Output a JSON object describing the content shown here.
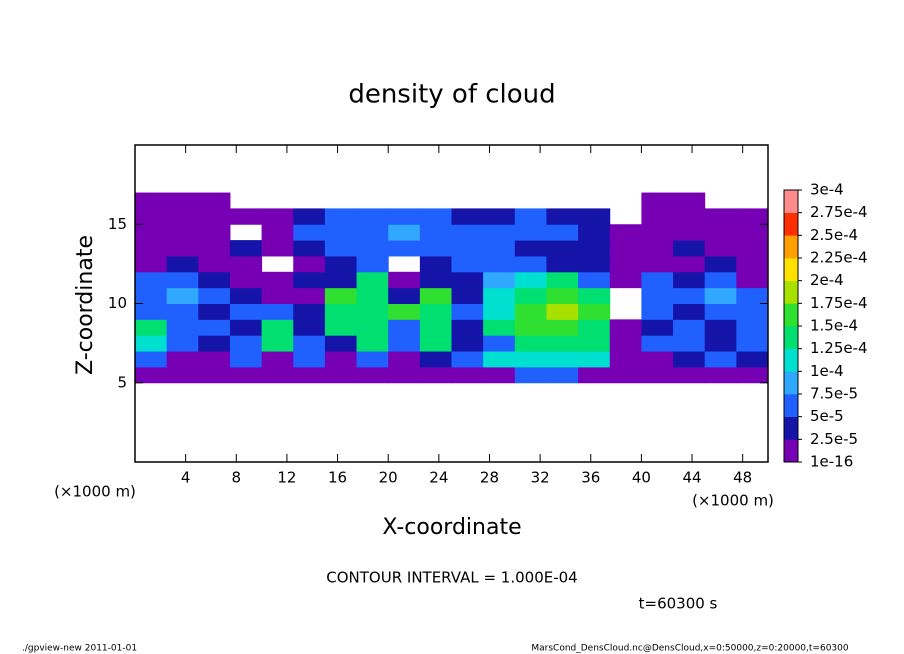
{
  "chart_data": {
    "type": "heatmap",
    "title": "density of cloud",
    "x_label": "X-coordinate",
    "y_label": "Z-coordinate",
    "x_unit_label": "(×1000 m)",
    "annotation": "CONTOUR INTERVAL = 1.000E-04",
    "time_label": "t=60300 s",
    "footer_left": "./gpview-new  2011-01-01",
    "footer_right": "MarsCond_DensCloud.nc@DensCloud,x=0:50000,z=0:20000,t=60300",
    "xlim": [
      0,
      50
    ],
    "ylim": [
      0,
      20
    ],
    "xticks": [
      4,
      8,
      12,
      16,
      20,
      24,
      28,
      32,
      36,
      40,
      44,
      48
    ],
    "yticks": [
      5,
      10,
      15
    ],
    "x_edges": [
      0,
      2.5,
      5,
      7.5,
      10,
      12.5,
      15,
      17.5,
      20,
      22.5,
      25,
      27.5,
      30,
      32.5,
      35,
      37.5,
      40,
      42.5,
      45,
      47.5,
      50
    ],
    "z_edges": [
      5,
      6,
      7,
      8,
      9,
      10,
      11,
      12,
      13,
      14,
      15,
      16,
      17
    ],
    "levels": [
      {
        "value": 1e-16,
        "label": "1e-16"
      },
      {
        "value": 2.5e-05,
        "label": "2.5e-5"
      },
      {
        "value": 5e-05,
        "label": "5e-5"
      },
      {
        "value": 7.5e-05,
        "label": "7.5e-5"
      },
      {
        "value": 0.0001,
        "label": "1e-4"
      },
      {
        "value": 0.000125,
        "label": "1.25e-4"
      },
      {
        "value": 0.00015,
        "label": "1.5e-4"
      },
      {
        "value": 0.000175,
        "label": "1.75e-4"
      },
      {
        "value": 0.0002,
        "label": "2e-4"
      },
      {
        "value": 0.000225,
        "label": "2.25e-4"
      },
      {
        "value": 0.00025,
        "label": "2.5e-4"
      },
      {
        "value": 0.000275,
        "label": "2.75e-4"
      },
      {
        "value": 0.0003,
        "label": "3e-4"
      }
    ],
    "level_colors": [
      "#7800b4",
      "#1414a8",
      "#2060ff",
      "#30a8ff",
      "#00e0d0",
      "#00e070",
      "#30e030",
      "#a8e000",
      "#ffe000",
      "#ffa000",
      "#ff3000",
      "#ff8c8c"
    ],
    "values": [
      [
        1e-05,
        1e-05,
        1e-05,
        1e-05,
        1e-05,
        1e-05,
        1e-05,
        1e-05,
        1e-05,
        1e-05,
        1e-05,
        1e-05,
        6e-05,
        6e-05,
        1e-05,
        1e-05,
        1e-05,
        1e-05,
        1e-05,
        1e-05
      ],
      [
        6e-05,
        1e-05,
        1e-05,
        6e-05,
        1e-05,
        6e-05,
        1e-05,
        6e-05,
        1e-05,
        3.5e-05,
        6e-05,
        0.00011,
        0.00011,
        0.00011,
        0.00011,
        1e-05,
        1e-05,
        3.5e-05,
        6e-05,
        3.5e-05
      ],
      [
        0.00011,
        6e-05,
        3.5e-05,
        6e-05,
        0.000135,
        6e-05,
        3.5e-05,
        0.000135,
        6e-05,
        0.000135,
        3.5e-05,
        6e-05,
        0.000135,
        0.000135,
        0.000135,
        1e-05,
        6e-05,
        6e-05,
        3.5e-05,
        6e-05
      ],
      [
        0.000135,
        6e-05,
        6e-05,
        3.5e-05,
        0.000135,
        3.5e-05,
        0.000135,
        0.000135,
        6e-05,
        0.000135,
        3.5e-05,
        0.000135,
        0.00016,
        0.00016,
        0.000135,
        1e-05,
        3.5e-05,
        6e-05,
        3.5e-05,
        6e-05
      ],
      [
        6e-05,
        6e-05,
        3.5e-05,
        6e-05,
        6e-05,
        3.5e-05,
        0.000135,
        0.000135,
        0.00016,
        0.000135,
        6e-05,
        0.00011,
        0.00016,
        0.000185,
        0.00016,
        null,
        6e-05,
        3.5e-05,
        6e-05,
        6e-05
      ],
      [
        6e-05,
        9e-05,
        6e-05,
        3.5e-05,
        1e-05,
        1e-05,
        0.00016,
        0.000135,
        3.5e-05,
        0.00016,
        3.5e-05,
        0.00011,
        0.000135,
        0.00016,
        0.000135,
        null,
        6e-05,
        6e-05,
        9e-05,
        6e-05
      ],
      [
        6e-05,
        6e-05,
        3.5e-05,
        1e-05,
        1e-05,
        3.5e-05,
        3.5e-05,
        0.000135,
        1e-05,
        3.5e-05,
        3.5e-05,
        9e-05,
        0.00011,
        0.000135,
        6e-05,
        1e-05,
        6e-05,
        3.5e-05,
        6e-05,
        1e-05
      ],
      [
        1e-05,
        3.5e-05,
        1e-05,
        1e-05,
        null,
        1e-05,
        3.5e-05,
        6e-05,
        null,
        3.5e-05,
        6e-05,
        6e-05,
        6e-05,
        3.5e-05,
        3.5e-05,
        1e-05,
        1e-05,
        1e-05,
        3.5e-05,
        1e-05
      ],
      [
        1e-05,
        1e-05,
        1e-05,
        3.5e-05,
        1e-05,
        3.5e-05,
        6e-05,
        6e-05,
        6e-05,
        6e-05,
        6e-05,
        6e-05,
        3.5e-05,
        3.5e-05,
        3.5e-05,
        1e-05,
        1e-05,
        3.5e-05,
        1e-05,
        1e-05
      ],
      [
        1e-05,
        1e-05,
        1e-05,
        null,
        1e-05,
        6e-05,
        6e-05,
        6e-05,
        9e-05,
        6e-05,
        6e-05,
        6e-05,
        6e-05,
        6e-05,
        3.5e-05,
        1e-05,
        1e-05,
        1e-05,
        1e-05,
        1e-05
      ],
      [
        1e-05,
        1e-05,
        1e-05,
        1e-05,
        1e-05,
        3.5e-05,
        6e-05,
        6e-05,
        6e-05,
        6e-05,
        3.5e-05,
        3.5e-05,
        6e-05,
        3.5e-05,
        3.5e-05,
        null,
        1e-05,
        1e-05,
        1e-05,
        1e-05
      ],
      [
        1e-05,
        1e-05,
        1e-05,
        null,
        null,
        null,
        null,
        null,
        null,
        null,
        null,
        null,
        null,
        null,
        null,
        null,
        1e-05,
        1e-05,
        null,
        null
      ]
    ]
  }
}
